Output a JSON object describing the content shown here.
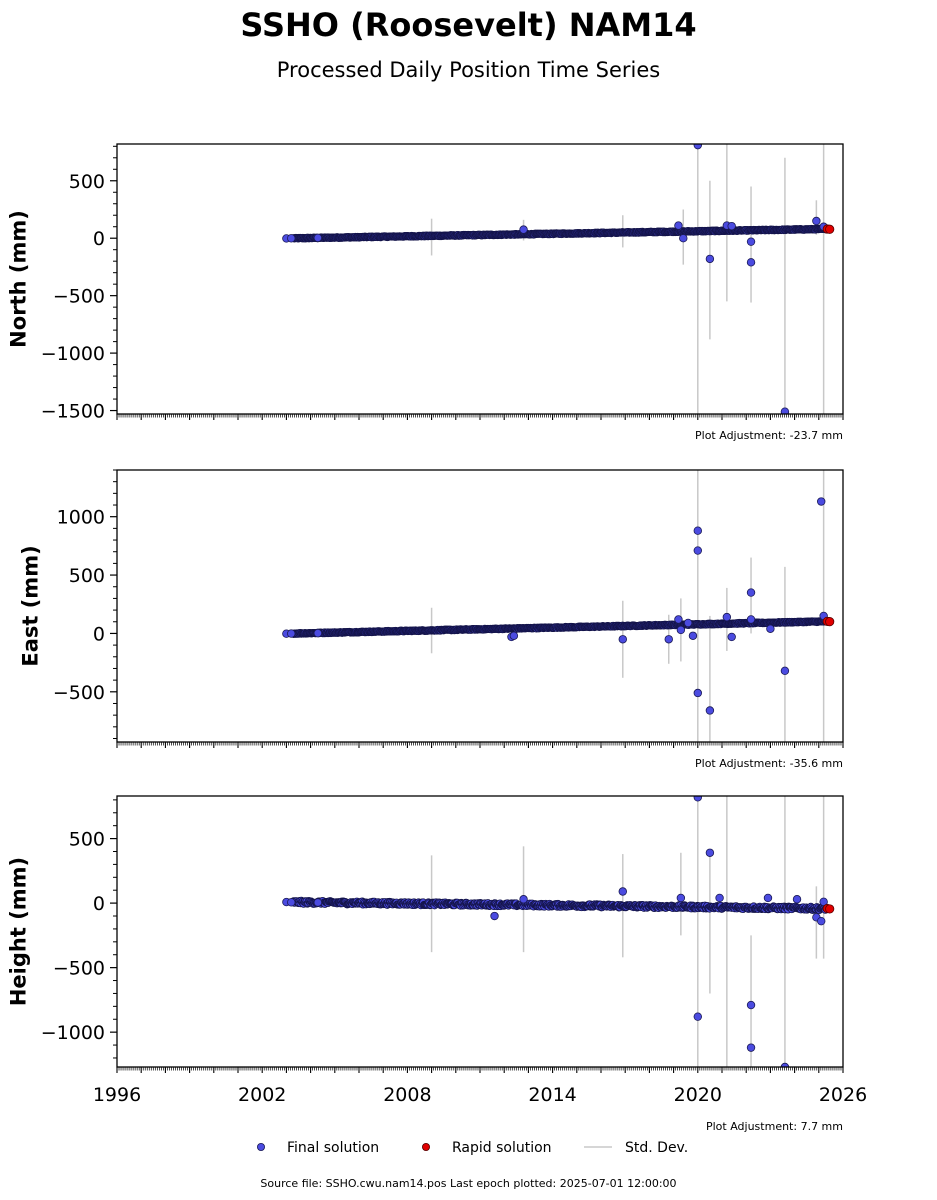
{
  "header": {
    "title": "SSHO (Roosevelt) NAM14",
    "subtitle": "Processed Daily Position Time Series"
  },
  "footer": {
    "source": "Source file: SSHO.cwu.nam14.pos  Last epoch plotted: 2025-07-01 12:00:00"
  },
  "legend": {
    "final": "Final solution",
    "rapid": "Rapid solution",
    "stddev": "Std. Dev."
  },
  "colors": {
    "final": "#4b4be0",
    "rapid": "#e00000",
    "stddev": "#c8c8c8"
  },
  "chart_data": [
    {
      "type": "scatter",
      "ylabel": "North (mm)",
      "xlim": [
        1996,
        2026
      ],
      "ylim": [
        -1530,
        820
      ],
      "yticks": [
        500,
        0,
        -500,
        -1000,
        -1500
      ],
      "ytick_labels": [
        "500",
        "0",
        "−500",
        "−1000",
        "−1500"
      ],
      "adjustment": "Plot Adjustment: -23.7 mm",
      "trend": [
        [
          2003.0,
          -2
        ],
        [
          2025.3,
          80
        ]
      ],
      "scatter_amp": 4,
      "series": [
        {
          "name": "Final solution",
          "points": [
            [
              2003.0,
              -2
            ],
            [
              2003.2,
              -1
            ],
            [
              2004.3,
              3
            ],
            [
              2012.8,
              75
            ],
            [
              2019.2,
              110
            ],
            [
              2019.4,
              0
            ],
            [
              2020.0,
              810
            ],
            [
              2020.5,
              -180
            ],
            [
              2021.2,
              110
            ],
            [
              2021.4,
              105
            ],
            [
              2022.2,
              -30
            ],
            [
              2022.2,
              -210
            ],
            [
              2023.6,
              -1510
            ],
            [
              2024.9,
              150
            ],
            [
              2025.2,
              100
            ]
          ]
        },
        {
          "name": "Rapid solution",
          "points": [
            [
              2025.35,
              80
            ],
            [
              2025.45,
              78
            ]
          ]
        }
      ],
      "stddev": [
        [
          2009.0,
          -150,
          170
        ],
        [
          2012.8,
          -20,
          160
        ],
        [
          2016.9,
          -80,
          200
        ],
        [
          2019.4,
          -230,
          250
        ],
        [
          2020.0,
          -1530,
          820
        ],
        [
          2020.5,
          -880,
          500
        ],
        [
          2021.2,
          -550,
          820
        ],
        [
          2022.2,
          -560,
          450
        ],
        [
          2023.6,
          -1530,
          700
        ],
        [
          2024.9,
          30,
          330
        ],
        [
          2025.2,
          -1530,
          820
        ]
      ]
    },
    {
      "type": "scatter",
      "ylabel": "East (mm)",
      "xlim": [
        1996,
        2026
      ],
      "ylim": [
        -930,
        1400
      ],
      "yticks": [
        1000,
        500,
        0,
        -500
      ],
      "ytick_labels": [
        "1000",
        "500",
        "0",
        "−500"
      ],
      "adjustment": "Plot Adjustment: -35.6 mm",
      "trend": [
        [
          2003.0,
          -2
        ],
        [
          2025.3,
          103
        ]
      ],
      "scatter_amp": 4,
      "series": [
        {
          "name": "Final solution",
          "points": [
            [
              2003.0,
              -2
            ],
            [
              2003.2,
              -1
            ],
            [
              2004.3,
              2
            ],
            [
              2012.3,
              -30
            ],
            [
              2012.4,
              -20
            ],
            [
              2016.9,
              -50
            ],
            [
              2018.8,
              -50
            ],
            [
              2019.2,
              120
            ],
            [
              2019.3,
              30
            ],
            [
              2019.6,
              90
            ],
            [
              2019.8,
              -20
            ],
            [
              2020.0,
              880
            ],
            [
              2020.0,
              710
            ],
            [
              2020.0,
              -510
            ],
            [
              2020.5,
              -660
            ],
            [
              2021.2,
              140
            ],
            [
              2021.4,
              -30
            ],
            [
              2022.2,
              350
            ],
            [
              2022.2,
              120
            ],
            [
              2023.0,
              40
            ],
            [
              2023.6,
              -320
            ],
            [
              2025.1,
              1130
            ],
            [
              2025.2,
              150
            ]
          ]
        },
        {
          "name": "Rapid solution",
          "points": [
            [
              2025.35,
              103
            ],
            [
              2025.45,
              101
            ]
          ]
        }
      ],
      "stddev": [
        [
          2009.0,
          -170,
          220
        ],
        [
          2016.9,
          -380,
          280
        ],
        [
          2018.8,
          -260,
          160
        ],
        [
          2019.3,
          -240,
          300
        ],
        [
          2020.0,
          -930,
          1400
        ],
        [
          2020.5,
          -930,
          150
        ],
        [
          2021.2,
          -150,
          390
        ],
        [
          2022.2,
          0,
          650
        ],
        [
          2023.6,
          -930,
          570
        ],
        [
          2025.2,
          -930,
          1400
        ]
      ]
    },
    {
      "type": "scatter",
      "ylabel": "Height (mm)",
      "xlim": [
        1996,
        2026
      ],
      "ylim": [
        -1270,
        830
      ],
      "yticks": [
        500,
        0,
        -500,
        -1000
      ],
      "ytick_labels": [
        "500",
        "0",
        "−500",
        "−1000"
      ],
      "adjustment": "Plot Adjustment: 7.7 mm",
      "trend": [
        [
          2003.0,
          8
        ],
        [
          2025.3,
          -42
        ]
      ],
      "scatter_amp": 12,
      "series": [
        {
          "name": "Final solution",
          "points": [
            [
              2003.0,
              8
            ],
            [
              2003.2,
              6
            ],
            [
              2004.3,
              5
            ],
            [
              2011.6,
              -100
            ],
            [
              2012.8,
              30
            ],
            [
              2016.9,
              90
            ],
            [
              2019.3,
              40
            ],
            [
              2020.0,
              820
            ],
            [
              2020.0,
              -880
            ],
            [
              2020.5,
              390
            ],
            [
              2020.9,
              40
            ],
            [
              2022.2,
              -790
            ],
            [
              2022.2,
              -1120
            ],
            [
              2022.9,
              40
            ],
            [
              2023.6,
              -1270
            ],
            [
              2024.1,
              30
            ],
            [
              2024.9,
              -110
            ],
            [
              2025.1,
              -140
            ],
            [
              2025.2,
              10
            ]
          ]
        },
        {
          "name": "Rapid solution",
          "points": [
            [
              2025.35,
              -42
            ],
            [
              2025.45,
              -45
            ]
          ]
        }
      ],
      "stddev": [
        [
          2009.0,
          -380,
          370
        ],
        [
          2012.8,
          -380,
          440
        ],
        [
          2016.9,
          -420,
          380
        ],
        [
          2019.3,
          -250,
          390
        ],
        [
          2020.0,
          -1270,
          830
        ],
        [
          2020.5,
          -700,
          380
        ],
        [
          2021.2,
          -1270,
          830
        ],
        [
          2022.2,
          -1270,
          -250
        ],
        [
          2023.6,
          -1270,
          830
        ],
        [
          2024.9,
          -430,
          130
        ],
        [
          2025.2,
          -430,
          830
        ]
      ]
    }
  ],
  "xaxis": {
    "ticks": [
      1996,
      2002,
      2008,
      2014,
      2020,
      2026
    ]
  }
}
